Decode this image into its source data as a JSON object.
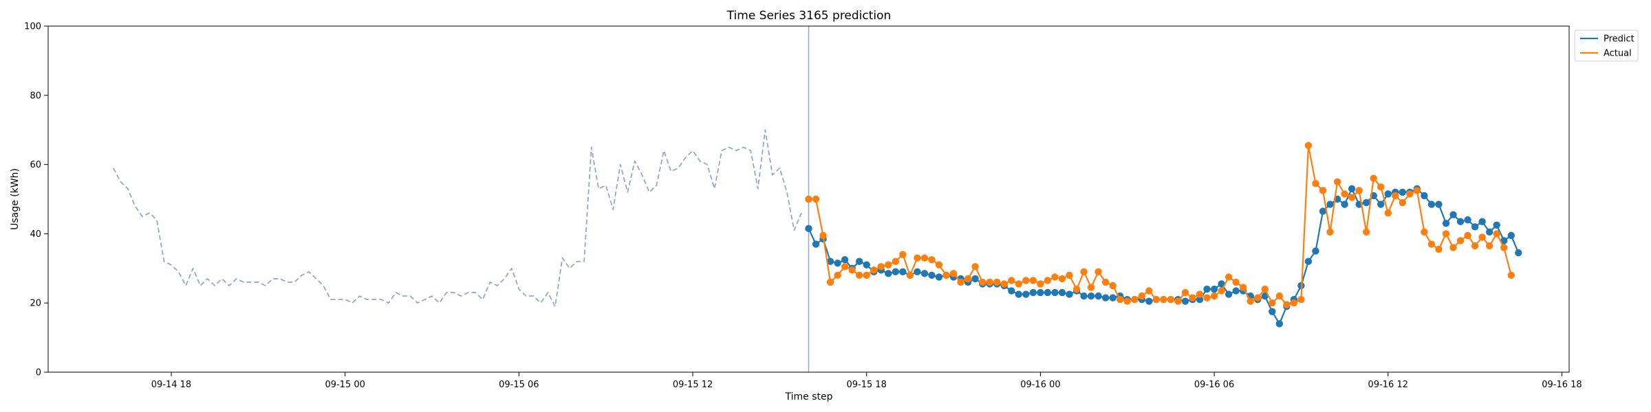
{
  "chart_data": {
    "type": "line",
    "title": "Time Series 3165 prediction",
    "xlabel": "Time step",
    "ylabel": "Usage (kWh)",
    "ylim": [
      0,
      100
    ],
    "y_ticks": [
      0,
      20,
      40,
      60,
      80,
      100
    ],
    "x_ticks": [
      "09-14 18",
      "09-15 00",
      "09-15 06",
      "09-15 12",
      "09-15 18",
      "09-16 00",
      "09-16 06",
      "09-16 12",
      "09-16 18"
    ],
    "x_tick_positions": [
      "2024-09-14T18:00",
      "2024-09-15T00:00",
      "2024-09-15T06:00",
      "2024-09-15T12:00",
      "2024-09-15T18:00",
      "2024-09-16T00:00",
      "2024-09-16T06:00",
      "2024-09-16T12:00",
      "2024-09-16T18:00"
    ],
    "xlim": [
      "2024-09-14T13:45",
      "2024-09-16T18:15"
    ],
    "step_minutes": 15,
    "grid": false,
    "legend_position": "top-right",
    "forecast_start": "2024-09-15T16:00",
    "colors": {
      "history": "#8fa8cf",
      "predict": "#1f77b4",
      "actual": "#ff7f0e",
      "divider": "#8fa8cf"
    },
    "series": [
      {
        "name": "",
        "role": "history",
        "start": "2024-09-14T16:00",
        "values": [
          59,
          55,
          53,
          48,
          45,
          46,
          44,
          32,
          31,
          29,
          25,
          30,
          25,
          27,
          25,
          27,
          25,
          27,
          26,
          26,
          26,
          25,
          27,
          27,
          26,
          26,
          28,
          29,
          27,
          25,
          21,
          21,
          21,
          20,
          22,
          21,
          21,
          21,
          20,
          23,
          22,
          22,
          20,
          21,
          22,
          20,
          23,
          23,
          22,
          23,
          23,
          21,
          26,
          25,
          27,
          30,
          24,
          22,
          22,
          20,
          23,
          19,
          33,
          30,
          32,
          32,
          65,
          53,
          54,
          47,
          60,
          52,
          61,
          57,
          52,
          54,
          64,
          58,
          59,
          62,
          64,
          61,
          60,
          53,
          64,
          65,
          64,
          65,
          64,
          53,
          70,
          57,
          59,
          52,
          41,
          46
        ]
      },
      {
        "name": "Predict",
        "role": "predict",
        "start": "2024-09-15T16:00",
        "values": [
          41.5,
          37,
          38.5,
          32,
          31.5,
          32.5,
          30,
          32,
          31,
          29,
          29.5,
          28.5,
          29,
          29,
          28,
          29,
          28.5,
          28,
          27.5,
          28,
          27.5,
          27,
          26,
          27,
          25.5,
          25.5,
          25.5,
          25,
          23.5,
          22.5,
          22.5,
          23,
          23,
          23,
          23,
          23,
          22.5,
          23.5,
          22,
          22,
          22,
          21.5,
          21.5,
          22,
          21,
          21,
          21,
          20.5,
          21,
          21,
          21,
          21,
          20.5,
          21,
          21,
          24,
          24,
          25.5,
          22.5,
          23.5,
          23.5,
          22,
          21,
          22,
          17.5,
          14,
          19,
          21,
          25,
          32,
          35,
          46.5,
          48.5,
          50,
          48.5,
          53,
          48.5,
          49,
          51,
          48.5,
          51.5,
          52,
          52,
          52,
          53,
          51,
          48.5,
          48.5,
          43,
          45.5,
          43.5,
          44,
          42,
          43.5,
          40.5,
          42.5,
          38,
          39.5,
          34.5
        ]
      },
      {
        "name": "Actual",
        "role": "actual",
        "start": "2024-09-15T16:00",
        "values": [
          50,
          50,
          39.5,
          26,
          28,
          30.5,
          29.5,
          28,
          28,
          29.5,
          30.5,
          31,
          32,
          34,
          28,
          33,
          33,
          32.5,
          31,
          28,
          28.5,
          26,
          27,
          30.5,
          26,
          26,
          26,
          25.5,
          26.5,
          25.5,
          26.5,
          26.5,
          25.5,
          26.5,
          27.5,
          27,
          28,
          24,
          29,
          24.5,
          29,
          26,
          25,
          21,
          20.5,
          21,
          22,
          23.5,
          21,
          21,
          21,
          20.5,
          23,
          21.5,
          22.5,
          21.5,
          22,
          23.5,
          27.5,
          26,
          24.5,
          20.5,
          21.5,
          24,
          20,
          22,
          19.5,
          20,
          21,
          65.5,
          54.5,
          52.5,
          40.5,
          55,
          51.5,
          50.5,
          52.5,
          40.5,
          56,
          53.5,
          46,
          51,
          49,
          51.5,
          52.5,
          40.5,
          37,
          35.5,
          40,
          36,
          38,
          39.5,
          36.5,
          39,
          36.5,
          40,
          36,
          28
        ]
      }
    ]
  }
}
